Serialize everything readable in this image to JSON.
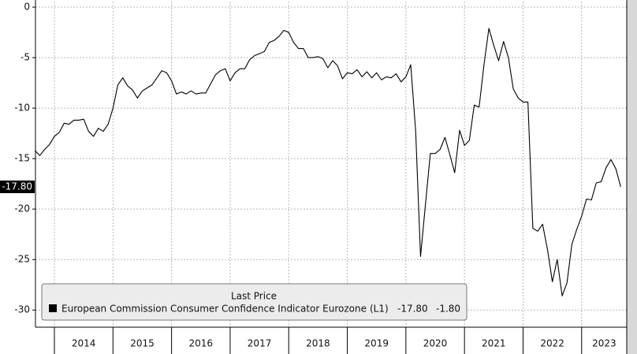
{
  "chart_data": {
    "type": "line",
    "legend_title": "Last Price",
    "series": [
      {
        "name": "European Commission Consumer Confidence Indicator Eurozone",
        "axis_label": "(L1)",
        "last_label": "-17.80",
        "change_label": "-1.80",
        "color": "#000000",
        "values": [
          -14.2,
          -14.7,
          -14.1,
          -13.6,
          -12.8,
          -12.4,
          -11.5,
          -11.6,
          -11.2,
          -11.2,
          -11.1,
          -12.3,
          -12.8,
          -12.0,
          -12.3,
          -11.6,
          -10.0,
          -7.7,
          -7.0,
          -7.8,
          -8.2,
          -9.0,
          -8.3,
          -8.0,
          -7.7,
          -7.0,
          -6.3,
          -6.5,
          -7.3,
          -8.6,
          -8.4,
          -8.6,
          -8.3,
          -8.6,
          -8.5,
          -8.5,
          -7.6,
          -6.7,
          -6.3,
          -6.1,
          -7.3,
          -6.5,
          -6.1,
          -6.1,
          -5.2,
          -4.8,
          -4.6,
          -4.4,
          -3.5,
          -3.3,
          -2.9,
          -2.3,
          -2.5,
          -3.5,
          -4.1,
          -4.1,
          -5.0,
          -5.0,
          -4.9,
          -5.1,
          -6.0,
          -5.3,
          -5.8,
          -7.1,
          -6.5,
          -6.6,
          -6.2,
          -6.9,
          -6.4,
          -7.0,
          -6.5,
          -7.2,
          -6.9,
          -7.0,
          -6.6,
          -7.4,
          -6.9,
          -5.7,
          -12.3,
          -24.7,
          -19.6,
          -14.5,
          -14.5,
          -14.1,
          -12.9,
          -14.6,
          -16.4,
          -12.2,
          -13.7,
          -13.2,
          -9.7,
          -9.9,
          -5.7,
          -2.1,
          -3.8,
          -5.3,
          -3.4,
          -5.0,
          -8.1,
          -9.0,
          -9.4,
          -9.4,
          -21.9,
          -22.2,
          -21.5,
          -24.0,
          -27.2,
          -25.0,
          -28.6,
          -27.3,
          -23.5,
          -22.0,
          -20.7,
          -19.0,
          -19.1,
          -17.4,
          -17.3,
          -15.9,
          -15.1,
          -16.0,
          -17.8
        ]
      }
    ],
    "x": [
      2013.667,
      2013.75,
      2013.833,
      2013.917,
      2014,
      2014.083,
      2014.167,
      2014.25,
      2014.333,
      2014.417,
      2014.5,
      2014.583,
      2014.667,
      2014.75,
      2014.833,
      2014.917,
      2015,
      2015.083,
      2015.167,
      2015.25,
      2015.333,
      2015.417,
      2015.5,
      2015.583,
      2015.667,
      2015.75,
      2015.833,
      2015.917,
      2016,
      2016.083,
      2016.167,
      2016.25,
      2016.333,
      2016.417,
      2016.5,
      2016.583,
      2016.667,
      2016.75,
      2016.833,
      2016.917,
      2017,
      2017.083,
      2017.167,
      2017.25,
      2017.333,
      2017.417,
      2017.5,
      2017.583,
      2017.667,
      2017.75,
      2017.833,
      2017.917,
      2018,
      2018.083,
      2018.167,
      2018.25,
      2018.333,
      2018.417,
      2018.5,
      2018.583,
      2018.667,
      2018.75,
      2018.833,
      2018.917,
      2019,
      2019.083,
      2019.167,
      2019.25,
      2019.333,
      2019.417,
      2019.5,
      2019.583,
      2019.667,
      2019.75,
      2019.833,
      2019.917,
      2020,
      2020.083,
      2020.167,
      2020.25,
      2020.333,
      2020.417,
      2020.5,
      2020.583,
      2020.667,
      2020.75,
      2020.833,
      2020.917,
      2021,
      2021.083,
      2021.167,
      2021.25,
      2021.333,
      2021.417,
      2021.5,
      2021.583,
      2021.667,
      2021.75,
      2021.833,
      2021.917,
      2022,
      2022.083,
      2022.167,
      2022.25,
      2022.333,
      2022.417,
      2022.5,
      2022.583,
      2022.667,
      2022.75,
      2022.833,
      2022.917,
      2023,
      2023.083,
      2023.167,
      2023.25,
      2023.333,
      2023.417,
      2023.5,
      2023.583,
      2023.667
    ],
    "xlim": [
      2013.677,
      2023.77
    ],
    "xticks": [
      2014,
      2015,
      2016,
      2017,
      2018,
      2019,
      2020,
      2021,
      2022,
      2023
    ],
    "ylim": [
      -31.7,
      0.55
    ],
    "yticks": [
      0,
      -5,
      -10,
      -15,
      -20,
      -25,
      -30
    ],
    "grid": true
  }
}
